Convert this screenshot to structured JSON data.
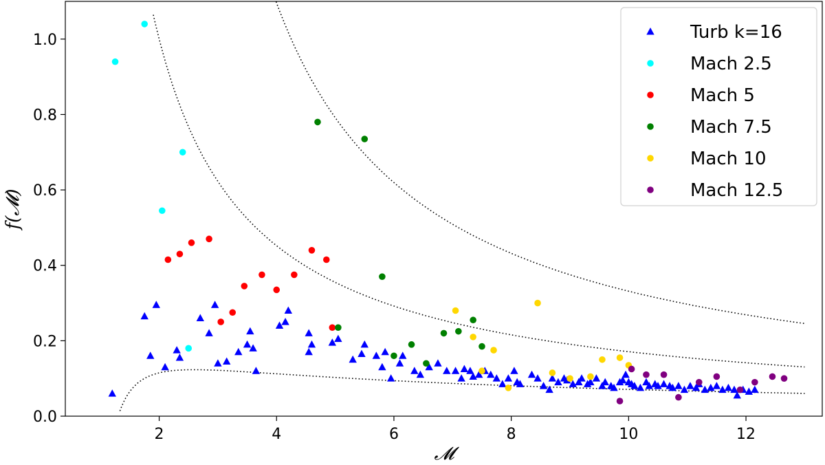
{
  "chart_data": {
    "type": "scatter",
    "xlabel": "𝓜",
    "ylabel": "f(𝓜)",
    "xlim": [
      0.4,
      13.3
    ],
    "ylim": [
      0.0,
      1.1
    ],
    "xticks": [
      2,
      4,
      6,
      8,
      10,
      12
    ],
    "yticks": [
      0.0,
      0.2,
      0.4,
      0.6,
      0.8,
      1.0
    ],
    "xtick_labels": [
      "2",
      "4",
      "6",
      "8",
      "10",
      "12"
    ],
    "ytick_labels": [
      "0.0",
      "0.2",
      "0.4",
      "0.6",
      "0.8",
      "1.0"
    ],
    "grid": false,
    "legend_position": "top-right",
    "legend": [
      {
        "label": "Turb k=16",
        "marker": "triangle",
        "color": "#0000ff"
      },
      {
        "label": "Mach 2.5",
        "marker": "circle",
        "color": "#00ffff"
      },
      {
        "label": "Mach 5",
        "marker": "circle",
        "color": "#ff0000"
      },
      {
        "label": "Mach 7.5",
        "marker": "circle",
        "color": "#008000"
      },
      {
        "label": "Mach 10",
        "marker": "circle",
        "color": "#ffd700"
      },
      {
        "label": "Mach 12.5",
        "marker": "circle",
        "color": "#800080"
      }
    ],
    "series": [
      {
        "name": "Turb k=16",
        "marker": "triangle",
        "color": "#0000ff",
        "points": [
          [
            1.2,
            0.06
          ],
          [
            1.75,
            0.265
          ],
          [
            1.85,
            0.16
          ],
          [
            1.95,
            0.295
          ],
          [
            2.1,
            0.13
          ],
          [
            2.3,
            0.175
          ],
          [
            2.35,
            0.155
          ],
          [
            2.7,
            0.26
          ],
          [
            2.85,
            0.22
          ],
          [
            2.95,
            0.295
          ],
          [
            3.0,
            0.14
          ],
          [
            3.15,
            0.145
          ],
          [
            3.35,
            0.17
          ],
          [
            3.5,
            0.19
          ],
          [
            3.55,
            0.225
          ],
          [
            3.6,
            0.18
          ],
          [
            3.65,
            0.12
          ],
          [
            4.05,
            0.24
          ],
          [
            4.15,
            0.25
          ],
          [
            4.2,
            0.28
          ],
          [
            4.55,
            0.22
          ],
          [
            4.55,
            0.17
          ],
          [
            4.6,
            0.19
          ],
          [
            4.95,
            0.195
          ],
          [
            5.05,
            0.205
          ],
          [
            5.3,
            0.15
          ],
          [
            5.45,
            0.165
          ],
          [
            5.5,
            0.19
          ],
          [
            5.7,
            0.16
          ],
          [
            5.8,
            0.13
          ],
          [
            5.85,
            0.17
          ],
          [
            5.95,
            0.1
          ],
          [
            6.1,
            0.14
          ],
          [
            6.15,
            0.16
          ],
          [
            6.35,
            0.12
          ],
          [
            6.45,
            0.11
          ],
          [
            6.6,
            0.13
          ],
          [
            6.75,
            0.14
          ],
          [
            6.9,
            0.12
          ],
          [
            7.05,
            0.12
          ],
          [
            7.15,
            0.1
          ],
          [
            7.2,
            0.125
          ],
          [
            7.3,
            0.12
          ],
          [
            7.35,
            0.105
          ],
          [
            7.45,
            0.11
          ],
          [
            7.55,
            0.12
          ],
          [
            7.65,
            0.11
          ],
          [
            7.75,
            0.1
          ],
          [
            7.85,
            0.085
          ],
          [
            7.95,
            0.1
          ],
          [
            8.05,
            0.12
          ],
          [
            8.1,
            0.09
          ],
          [
            8.15,
            0.085
          ],
          [
            8.35,
            0.11
          ],
          [
            8.45,
            0.1
          ],
          [
            8.55,
            0.08
          ],
          [
            8.65,
            0.07
          ],
          [
            8.7,
            0.1
          ],
          [
            8.8,
            0.09
          ],
          [
            8.9,
            0.1
          ],
          [
            8.95,
            0.095
          ],
          [
            9.05,
            0.085
          ],
          [
            9.15,
            0.09
          ],
          [
            9.2,
            0.1
          ],
          [
            9.3,
            0.085
          ],
          [
            9.35,
            0.09
          ],
          [
            9.45,
            0.1
          ],
          [
            9.55,
            0.08
          ],
          [
            9.6,
            0.09
          ],
          [
            9.7,
            0.08
          ],
          [
            9.75,
            0.075
          ],
          [
            9.85,
            0.09
          ],
          [
            9.9,
            0.095
          ],
          [
            9.95,
            0.11
          ],
          [
            10.0,
            0.09
          ],
          [
            10.05,
            0.085
          ],
          [
            10.1,
            0.08
          ],
          [
            10.2,
            0.075
          ],
          [
            10.3,
            0.09
          ],
          [
            10.35,
            0.08
          ],
          [
            10.45,
            0.085
          ],
          [
            10.5,
            0.08
          ],
          [
            10.6,
            0.085
          ],
          [
            10.7,
            0.08
          ],
          [
            10.75,
            0.075
          ],
          [
            10.85,
            0.08
          ],
          [
            10.95,
            0.07
          ],
          [
            11.05,
            0.08
          ],
          [
            11.15,
            0.075
          ],
          [
            11.2,
            0.085
          ],
          [
            11.3,
            0.07
          ],
          [
            11.4,
            0.075
          ],
          [
            11.5,
            0.08
          ],
          [
            11.6,
            0.07
          ],
          [
            11.7,
            0.075
          ],
          [
            11.8,
            0.07
          ],
          [
            11.85,
            0.055
          ],
          [
            11.95,
            0.07
          ],
          [
            12.05,
            0.065
          ],
          [
            12.15,
            0.07
          ]
        ]
      },
      {
        "name": "Mach 2.5",
        "marker": "circle",
        "color": "#00ffff",
        "points": [
          [
            1.25,
            0.94
          ],
          [
            1.75,
            1.04
          ],
          [
            2.05,
            0.545
          ],
          [
            2.4,
            0.7
          ],
          [
            2.5,
            0.18
          ]
        ]
      },
      {
        "name": "Mach 5",
        "marker": "circle",
        "color": "#ff0000",
        "points": [
          [
            2.15,
            0.415
          ],
          [
            2.35,
            0.43
          ],
          [
            2.55,
            0.46
          ],
          [
            2.85,
            0.47
          ],
          [
            3.05,
            0.25
          ],
          [
            3.25,
            0.275
          ],
          [
            3.45,
            0.345
          ],
          [
            3.75,
            0.375
          ],
          [
            4.0,
            0.335
          ],
          [
            4.3,
            0.375
          ],
          [
            4.6,
            0.44
          ],
          [
            4.85,
            0.415
          ],
          [
            4.95,
            0.235
          ]
        ]
      },
      {
        "name": "Mach 7.5",
        "marker": "circle",
        "color": "#008000",
        "points": [
          [
            4.7,
            0.78
          ],
          [
            5.05,
            0.235
          ],
          [
            5.5,
            0.735
          ],
          [
            5.8,
            0.37
          ],
          [
            6.0,
            0.16
          ],
          [
            6.3,
            0.19
          ],
          [
            6.55,
            0.14
          ],
          [
            6.85,
            0.22
          ],
          [
            7.1,
            0.225
          ],
          [
            7.35,
            0.255
          ],
          [
            7.5,
            0.185
          ]
        ]
      },
      {
        "name": "Mach 10",
        "marker": "circle",
        "color": "#ffd700",
        "points": [
          [
            7.05,
            0.28
          ],
          [
            7.35,
            0.21
          ],
          [
            7.5,
            0.12
          ],
          [
            7.7,
            0.175
          ],
          [
            7.95,
            0.075
          ],
          [
            8.45,
            0.3
          ],
          [
            8.7,
            0.115
          ],
          [
            9.0,
            0.1
          ],
          [
            9.35,
            0.105
          ],
          [
            9.55,
            0.15
          ],
          [
            9.85,
            0.155
          ],
          [
            10.0,
            0.135
          ]
        ]
      },
      {
        "name": "Mach 12.5",
        "marker": "circle",
        "color": "#800080",
        "points": [
          [
            9.85,
            0.04
          ],
          [
            10.05,
            0.125
          ],
          [
            10.3,
            0.11
          ],
          [
            10.6,
            0.11
          ],
          [
            10.85,
            0.05
          ],
          [
            11.2,
            0.09
          ],
          [
            11.5,
            0.105
          ],
          [
            11.9,
            0.07
          ],
          [
            12.15,
            0.09
          ],
          [
            12.45,
            0.105
          ],
          [
            12.65,
            0.1
          ]
        ]
      }
    ],
    "reference_curves": [
      {
        "style": "dotted",
        "color": "#000000",
        "formula": "1.65/(x-0.35)",
        "x_range": [
          1.9,
          13.0
        ]
      },
      {
        "style": "dotted",
        "color": "#000000",
        "formula": "2.85/(x-1.4)",
        "x_range": [
          3.9,
          13.0
        ]
      },
      {
        "style": "dotted",
        "color": "#000000",
        "formula": "0.32*log(x/1.3)/(x-0.8)",
        "x_range": [
          1.33,
          13.0
        ]
      }
    ]
  }
}
